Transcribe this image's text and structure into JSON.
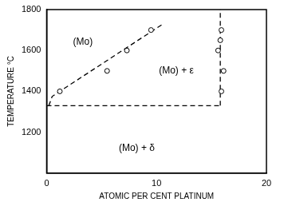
{
  "chart_data": {
    "type": "scatter",
    "x_label": "ATOMIC PER CENT PLATINUM",
    "y_label": "TEMPERATURE °C",
    "xlim": [
      0,
      20
    ],
    "xticks": [
      0,
      10,
      20
    ],
    "ylim": [
      1000,
      1800
    ],
    "yticks": [
      1200,
      1400,
      1600,
      1800
    ],
    "grid": false,
    "series": [
      {
        "type": "scatter",
        "marker": "circle",
        "color": "#000000",
        "x": [
          1.2,
          5.5,
          7.3,
          9.5,
          15.9,
          15.8,
          15.6,
          16.1,
          15.9
        ],
        "values": [
          1400,
          1500,
          1600,
          1700,
          1700,
          1650,
          1600,
          1500,
          1400
        ]
      },
      {
        "type": "line",
        "line_style": "dashed",
        "color": "#000000",
        "x": [
          0.2,
          0.5,
          1.2,
          10.6
        ],
        "values": [
          1330,
          1375,
          1400,
          1730
        ]
      },
      {
        "type": "line",
        "line_style": "dashed",
        "color": "#000000",
        "x": [
          0,
          15.8
        ],
        "values": [
          1330,
          1330
        ]
      },
      {
        "type": "line",
        "line_style": "dashed",
        "color": "#000000",
        "x": [
          15.8,
          15.8
        ],
        "values": [
          1330,
          1800
        ]
      }
    ],
    "annotations": [
      {
        "text": "(Mo)",
        "x": 3.3,
        "y": 1640
      },
      {
        "text": "(Mo) + ε",
        "x": 11.8,
        "y": 1500
      },
      {
        "text": "(Mo) + δ",
        "x": 8.2,
        "y": 1120
      }
    ]
  }
}
